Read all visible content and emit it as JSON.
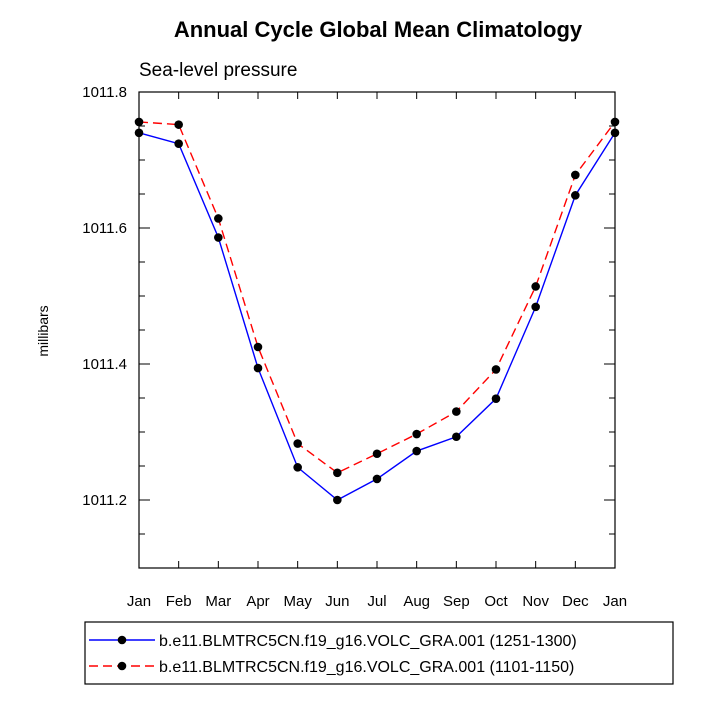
{
  "chart_data": {
    "type": "line",
    "title": "Annual Cycle Global Mean Climatology",
    "subtitle": "Sea-level pressure",
    "ylabel": "millibars",
    "xlabel": "",
    "categories": [
      "Jan",
      "Feb",
      "Mar",
      "Apr",
      "May",
      "Jun",
      "Jul",
      "Aug",
      "Sep",
      "Oct",
      "Nov",
      "Dec",
      "Jan"
    ],
    "ylim": [
      1011.1,
      1011.8
    ],
    "yticks": [
      "1011.2",
      "1011.4",
      "1011.6",
      "1011.8"
    ],
    "ytick_values": [
      1011.2,
      1011.4,
      1011.6,
      1011.8
    ],
    "y_minor_step": 0.05,
    "grid": false,
    "legend_position": "bottom",
    "series": [
      {
        "name": "b.e11.BLMTRC5CN.f19_g16.VOLC_GRA.001 (1251-1300)",
        "color": "#0000ff",
        "line_style": "solid",
        "marker": "filled-circle",
        "values": [
          1011.74,
          1011.724,
          1011.586,
          1011.394,
          1011.248,
          1011.2,
          1011.231,
          1011.272,
          1011.293,
          1011.349,
          1011.484,
          1011.648,
          1011.74
        ]
      },
      {
        "name": "b.e11.BLMTRC5CN.f19_g16.VOLC_GRA.001 (1101-1150)",
        "color": "#ff0000",
        "line_style": "dashed",
        "marker": "filled-circle",
        "values": [
          1011.756,
          1011.752,
          1011.614,
          1011.425,
          1011.283,
          1011.24,
          1011.268,
          1011.297,
          1011.33,
          1011.392,
          1011.514,
          1011.678,
          1011.756
        ]
      }
    ]
  }
}
